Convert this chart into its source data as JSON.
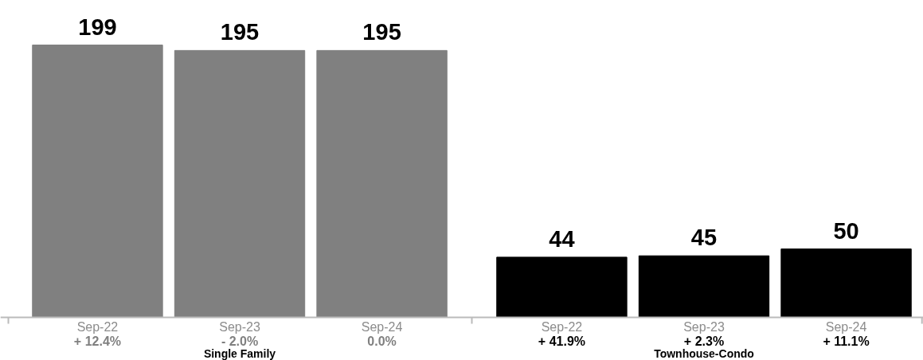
{
  "chart_data": {
    "type": "bar",
    "categories": [
      "Sep-22\n+ 12.4%",
      "Sep-23\n- 2.0%",
      "Sep-24\n0.0%",
      "Sep-22\n+ 41.9%",
      "Sep-23\n+ 2.3%",
      "Sep-24\n+ 11.1%"
    ],
    "values": [
      199,
      195,
      195,
      44,
      45,
      50
    ],
    "colors": [
      "#808080",
      "#808080",
      "#808080",
      "#000000",
      "#000000",
      "#000000"
    ],
    "data_labels": true,
    "annotations": [
      "Single Family",
      "Townhouse-Condo"
    ],
    "grid": false
  }
}
